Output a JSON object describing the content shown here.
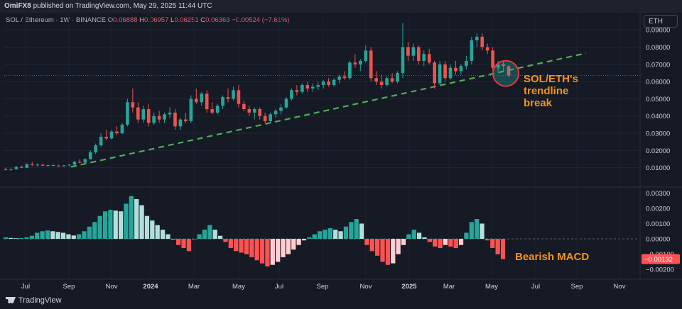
{
  "header": {
    "author": "OmiFX8",
    "published_text": "published on TradingView.com, May 29, 2025 11:44 UTC"
  },
  "symbol_line": {
    "pair": "SOL / Ethereum · 1W · BINANCE",
    "o_label": "O",
    "o_value": "0.06888",
    "h_label": "H",
    "h_value": "0.06957",
    "l_label": "L",
    "l_value": "0.06251",
    "c_label": "C",
    "c_value": "0.06363",
    "change": "−0.00524 (−7.61%)"
  },
  "currency_button": "ETH",
  "footer": {
    "brand": "TradingView"
  },
  "colors": {
    "up": "#26a69a",
    "down": "#ef5350",
    "macd_up_strong": "#26a69a",
    "macd_up_weak": "#b2dfdb",
    "macd_down_strong": "#ff5252",
    "macd_down_weak": "#ffcdd2",
    "trendline": "#4caf50",
    "annotation": "#f7931a",
    "background": "#161a25"
  },
  "chart_data": [
    {
      "type": "candlestick",
      "pair": "SOL/ETH",
      "interval": "1W",
      "y_ticks": [
        "0.01000",
        "0.02000",
        "0.03000",
        "0.04000",
        "0.05000",
        "0.06000",
        "0.07000",
        "0.08000",
        "0.09000"
      ],
      "ylim": [
        0.0,
        0.095
      ],
      "last_price_label": "0.06363",
      "x_ticks": [
        "Jul",
        "Sep",
        "Nov",
        "2024",
        "Mar",
        "May",
        "Jul",
        "Sep",
        "Nov",
        "2025",
        "Mar",
        "May",
        "Jul",
        "Sep",
        "Nov"
      ],
      "candles": [
        [
          0.009,
          0.01,
          0.0085,
          0.0088
        ],
        [
          0.0088,
          0.0095,
          0.0082,
          0.0092
        ],
        [
          0.0092,
          0.011,
          0.0088,
          0.0105
        ],
        [
          0.0105,
          0.0112,
          0.0098,
          0.01
        ],
        [
          0.01,
          0.0125,
          0.0098,
          0.012
        ],
        [
          0.012,
          0.0135,
          0.011,
          0.0115
        ],
        [
          0.0115,
          0.0125,
          0.0108,
          0.0118
        ],
        [
          0.0118,
          0.0122,
          0.011,
          0.0112
        ],
        [
          0.0112,
          0.0118,
          0.0105,
          0.0115
        ],
        [
          0.0115,
          0.012,
          0.011,
          0.0112
        ],
        [
          0.0112,
          0.0118,
          0.0108,
          0.011
        ],
        [
          0.011,
          0.0116,
          0.0105,
          0.0114
        ],
        [
          0.0114,
          0.012,
          0.0108,
          0.0118
        ],
        [
          0.0118,
          0.014,
          0.0115,
          0.0135
        ],
        [
          0.0135,
          0.015,
          0.0125,
          0.013
        ],
        [
          0.013,
          0.0155,
          0.0128,
          0.015
        ],
        [
          0.015,
          0.02,
          0.0148,
          0.019
        ],
        [
          0.019,
          0.024,
          0.018,
          0.023
        ],
        [
          0.023,
          0.03,
          0.022,
          0.028
        ],
        [
          0.028,
          0.032,
          0.026,
          0.027
        ],
        [
          0.027,
          0.032,
          0.0265,
          0.031
        ],
        [
          0.031,
          0.034,
          0.029,
          0.03
        ],
        [
          0.03,
          0.036,
          0.0295,
          0.035
        ],
        [
          0.035,
          0.05,
          0.034,
          0.048
        ],
        [
          0.048,
          0.056,
          0.042,
          0.045
        ],
        [
          0.045,
          0.048,
          0.036,
          0.038
        ],
        [
          0.038,
          0.046,
          0.036,
          0.044
        ],
        [
          0.044,
          0.047,
          0.034,
          0.036
        ],
        [
          0.036,
          0.042,
          0.035,
          0.04
        ],
        [
          0.04,
          0.043,
          0.036,
          0.038
        ],
        [
          0.038,
          0.042,
          0.036,
          0.041
        ],
        [
          0.041,
          0.045,
          0.039,
          0.042
        ],
        [
          0.042,
          0.044,
          0.032,
          0.034
        ],
        [
          0.034,
          0.039,
          0.032,
          0.038
        ],
        [
          0.038,
          0.042,
          0.036,
          0.037
        ],
        [
          0.037,
          0.052,
          0.036,
          0.05
        ],
        [
          0.05,
          0.056,
          0.047,
          0.048
        ],
        [
          0.048,
          0.054,
          0.046,
          0.053
        ],
        [
          0.053,
          0.055,
          0.042,
          0.044
        ],
        [
          0.044,
          0.048,
          0.041,
          0.042
        ],
        [
          0.042,
          0.047,
          0.041,
          0.046
        ],
        [
          0.046,
          0.052,
          0.044,
          0.051
        ],
        [
          0.051,
          0.056,
          0.048,
          0.05
        ],
        [
          0.05,
          0.057,
          0.049,
          0.055
        ],
        [
          0.055,
          0.058,
          0.045,
          0.047
        ],
        [
          0.047,
          0.049,
          0.043,
          0.044
        ],
        [
          0.044,
          0.046,
          0.04,
          0.042
        ],
        [
          0.042,
          0.045,
          0.038,
          0.044
        ],
        [
          0.044,
          0.045,
          0.038,
          0.04
        ],
        [
          0.04,
          0.042,
          0.036,
          0.037
        ],
        [
          0.037,
          0.042,
          0.036,
          0.041
        ],
        [
          0.041,
          0.044,
          0.039,
          0.043
        ],
        [
          0.043,
          0.047,
          0.041,
          0.045
        ],
        [
          0.045,
          0.051,
          0.044,
          0.05
        ],
        [
          0.05,
          0.056,
          0.049,
          0.055
        ],
        [
          0.055,
          0.058,
          0.052,
          0.054
        ],
        [
          0.054,
          0.059,
          0.053,
          0.058
        ],
        [
          0.058,
          0.06,
          0.054,
          0.056
        ],
        [
          0.056,
          0.059,
          0.054,
          0.057
        ],
        [
          0.057,
          0.06,
          0.055,
          0.058
        ],
        [
          0.058,
          0.061,
          0.056,
          0.06
        ],
        [
          0.06,
          0.062,
          0.057,
          0.058
        ],
        [
          0.058,
          0.062,
          0.057,
          0.061
        ],
        [
          0.061,
          0.064,
          0.059,
          0.063
        ],
        [
          0.063,
          0.066,
          0.061,
          0.062
        ],
        [
          0.062,
          0.072,
          0.061,
          0.071
        ],
        [
          0.071,
          0.076,
          0.068,
          0.07
        ],
        [
          0.07,
          0.073,
          0.066,
          0.072
        ],
        [
          0.072,
          0.081,
          0.071,
          0.078
        ],
        [
          0.078,
          0.08,
          0.06,
          0.062
        ],
        [
          0.062,
          0.066,
          0.058,
          0.06
        ],
        [
          0.06,
          0.064,
          0.056,
          0.058
        ],
        [
          0.058,
          0.063,
          0.057,
          0.062
        ],
        [
          0.062,
          0.065,
          0.059,
          0.06
        ],
        [
          0.06,
          0.066,
          0.059,
          0.065
        ],
        [
          0.065,
          0.094,
          0.062,
          0.08
        ],
        [
          0.08,
          0.083,
          0.072,
          0.075
        ],
        [
          0.075,
          0.082,
          0.072,
          0.08
        ],
        [
          0.08,
          0.081,
          0.07,
          0.072
        ],
        [
          0.072,
          0.078,
          0.069,
          0.076
        ],
        [
          0.076,
          0.079,
          0.07,
          0.071
        ],
        [
          0.071,
          0.072,
          0.056,
          0.059
        ],
        [
          0.059,
          0.072,
          0.058,
          0.07
        ],
        [
          0.07,
          0.072,
          0.06,
          0.062
        ],
        [
          0.062,
          0.07,
          0.061,
          0.068
        ],
        [
          0.068,
          0.072,
          0.064,
          0.066
        ],
        [
          0.066,
          0.07,
          0.064,
          0.069
        ],
        [
          0.069,
          0.075,
          0.067,
          0.072
        ],
        [
          0.072,
          0.086,
          0.07,
          0.084
        ],
        [
          0.084,
          0.088,
          0.08,
          0.086
        ],
        [
          0.086,
          0.088,
          0.078,
          0.08
        ],
        [
          0.08,
          0.082,
          0.076,
          0.078
        ],
        [
          0.078,
          0.08,
          0.066,
          0.068
        ],
        [
          0.068,
          0.072,
          0.066,
          0.07
        ],
        [
          0.07,
          0.072,
          0.066,
          0.069
        ],
        [
          0.06888,
          0.06957,
          0.06251,
          0.06363
        ]
      ],
      "trendline": {
        "from": [
          0.0105,
          0
        ],
        "to": [
          0.0765,
          1
        ],
        "style": "dashed"
      },
      "annotation": "SOL/ETH's trendline break"
    },
    {
      "type": "bar",
      "indicator": "MACD histogram",
      "y_ticks": [
        "0.00300",
        "0.00200",
        "0.00100",
        "0.00000",
        "−0.00100",
        "−0.00200"
      ],
      "ylim": [
        -0.0025,
        0.0032
      ],
      "last_value_label": "−0.00132",
      "values": [
        0.0001,
        6e-05,
        4e-05,
        5e-05,
        0.0001,
        0.0002,
        0.0004,
        0.0005,
        0.00055,
        0.0005,
        0.00045,
        0.0004,
        0.0003,
        0.00022,
        0.0003,
        0.0005,
        0.0008,
        0.0011,
        0.0015,
        0.0018,
        0.0019,
        0.00185,
        0.0018,
        0.0023,
        0.0028,
        0.0026,
        0.0022,
        0.0015,
        0.0012,
        0.0009,
        0.0006,
        0.0003,
        0.0,
        -0.0004,
        -0.0006,
        -0.0008,
        0.0,
        0.0003,
        0.0006,
        0.0009,
        0.0006,
        0.0002,
        -0.0002,
        -0.0006,
        -0.0008,
        -0.0009,
        -0.001,
        -0.0012,
        -0.0014,
        -0.0016,
        -0.0018,
        -0.0017,
        -0.0015,
        -0.0012,
        -0.001,
        -0.0007,
        -0.0004,
        -0.0001,
        0.0001,
        0.0003,
        0.0005,
        0.0006,
        0.0007,
        0.0006,
        0.0005,
        0.0008,
        0.0011,
        0.0013,
        0.001,
        -0.0004,
        -0.0008,
        -0.0011,
        -0.0015,
        -0.0017,
        -0.0016,
        -0.001,
        -0.0004,
        0.0003,
        0.0006,
        0.0004,
        0.0001,
        -0.0002,
        -0.0005,
        -0.0006,
        -0.0004,
        -0.0005,
        -0.0006,
        -0.0004,
        0.0004,
        0.0011,
        0.0013,
        0.001,
        -0.0001,
        -0.0006,
        -0.001,
        -0.00132
      ],
      "annotation": "Bearish MACD"
    }
  ]
}
